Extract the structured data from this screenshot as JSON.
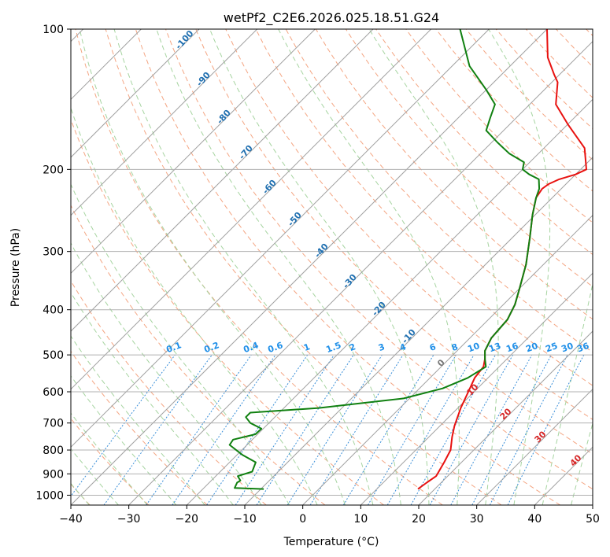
{
  "chart_data": {
    "type": "line",
    "title": "wetPf2_C2E6.2026.025.18.51.G24",
    "xlabel": "Temperature (°C)",
    "ylabel": "Pressure (hPa)",
    "xlim": [
      -40,
      50
    ],
    "ylim": [
      1050,
      100
    ],
    "y_scale": "log",
    "grid": true,
    "x_ticks": [
      -40,
      -30,
      -20,
      -10,
      0,
      10,
      20,
      30,
      40,
      50
    ],
    "y_ticks": [
      100,
      200,
      300,
      400,
      500,
      600,
      700,
      800,
      900,
      1000
    ],
    "skew_degrees": 45,
    "series": [
      {
        "color": "#e8110f",
        "points": [
          [
            17.1,
            970
          ],
          [
            17.5,
            940
          ],
          [
            18.0,
            910
          ],
          [
            17.0,
            850
          ],
          [
            16.0,
            800
          ],
          [
            14.0,
            750
          ],
          [
            12.5,
            710
          ],
          [
            10.5,
            650
          ],
          [
            9.0,
            600
          ],
          [
            7.7,
            560
          ],
          [
            7.3,
            530
          ],
          [
            6.2,
            510
          ],
          [
            4.8,
            490
          ],
          [
            3.7,
            460
          ],
          [
            3.3,
            420
          ],
          [
            2.0,
            390
          ],
          [
            0.0,
            360
          ],
          [
            -3.0,
            320
          ],
          [
            -7.0,
            280
          ],
          [
            -10.5,
            250
          ],
          [
            -12.8,
            230
          ],
          [
            -13.3,
            220
          ],
          [
            -13.0,
            215
          ],
          [
            -12.0,
            210
          ],
          [
            -10.0,
            205
          ],
          [
            -9.0,
            200
          ],
          [
            -13.0,
            180
          ],
          [
            -20.0,
            160
          ],
          [
            -25.5,
            145
          ],
          [
            -29.0,
            130
          ],
          [
            -31.0,
            125
          ],
          [
            -35.0,
            115
          ],
          [
            -40.0,
            100
          ]
        ]
      },
      {
        "color": "#108010",
        "points": [
          [
            -9.5,
            970
          ],
          [
            -14.7,
            965
          ],
          [
            -15.2,
            940
          ],
          [
            -15.0,
            930
          ],
          [
            -16.2,
            910
          ],
          [
            -14.5,
            890
          ],
          [
            -15.5,
            850
          ],
          [
            -19.0,
            820
          ],
          [
            -23.0,
            780
          ],
          [
            -23.3,
            760
          ],
          [
            -20.4,
            740
          ],
          [
            -20.3,
            720
          ],
          [
            -23.2,
            700
          ],
          [
            -25.0,
            680
          ],
          [
            -25.0,
            665
          ],
          [
            -14.0,
            650
          ],
          [
            -1.0,
            620
          ],
          [
            4.0,
            590
          ],
          [
            6.5,
            560
          ],
          [
            7.7,
            530
          ],
          [
            6.2,
            510
          ],
          [
            4.8,
            490
          ],
          [
            3.7,
            460
          ],
          [
            3.3,
            420
          ],
          [
            2.0,
            390
          ],
          [
            0.0,
            360
          ],
          [
            -3.0,
            320
          ],
          [
            -7.0,
            280
          ],
          [
            -10.5,
            250
          ],
          [
            -12.8,
            230
          ],
          [
            -13.8,
            220
          ],
          [
            -15.5,
            210
          ],
          [
            -18.0,
            205
          ],
          [
            -20.0,
            200
          ],
          [
            -21.0,
            193
          ],
          [
            -25.0,
            185
          ],
          [
            -29.0,
            175
          ],
          [
            -33.0,
            165
          ],
          [
            -34.5,
            155
          ],
          [
            -36.0,
            145
          ],
          [
            -40.0,
            135
          ],
          [
            -47.0,
            120
          ],
          [
            -55.0,
            100
          ]
        ]
      }
    ],
    "dry_adiabat_labels": [
      "-100",
      "-90",
      "-80",
      "-70",
      "-60",
      "-50",
      "-40",
      "-30",
      "-20",
      "-10"
    ],
    "moist_adiabat_labels": [
      "0",
      "10",
      "20",
      "30",
      "40"
    ],
    "mixing_ratio_labels": [
      "0.1",
      "0.2",
      "0.4",
      "0.6",
      "1",
      "1.5",
      "2",
      "3",
      "4",
      "6",
      "8",
      "10",
      "13",
      "16",
      "20",
      "25",
      "30",
      "36"
    ]
  },
  "colors": {
    "isotherm": "#a0a0a0",
    "isobar": "#b0b0b0",
    "dry_adiabat": "#f4a582",
    "moist_adiabat": "#a6d4a0",
    "mixing_ratio": "#3a8fd8",
    "secondary_guide": "#d8c2a8"
  }
}
